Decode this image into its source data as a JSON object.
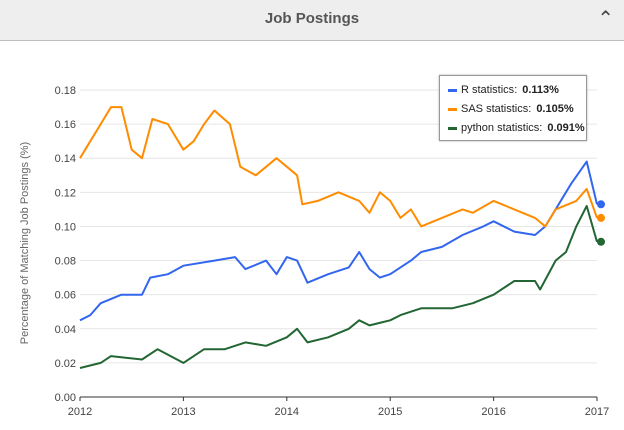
{
  "header": {
    "title": "Job Postings",
    "collapse_icon": "chevron-up-icon"
  },
  "chart_data": {
    "type": "line",
    "title": "Job Postings",
    "xlabel": "",
    "ylabel": "Percentage of Matching Job Postings (%)",
    "xlim": [
      2012,
      2017
    ],
    "ylim": [
      0,
      0.18
    ],
    "x_ticks": [
      "2012",
      "2013",
      "2014",
      "2015",
      "2016",
      "2017"
    ],
    "y_ticks": [
      "0.00",
      "0.02",
      "0.04",
      "0.06",
      "0.08",
      "0.10",
      "0.12",
      "0.14",
      "0.16",
      "0.18"
    ],
    "grid": true,
    "legend_position": "top-right",
    "series": [
      {
        "name": "R statistics",
        "color": "#3366ee",
        "latest": "0.113%",
        "points": [
          [
            2012,
            0.045
          ],
          [
            2012.1,
            0.048
          ],
          [
            2012.2,
            0.055
          ],
          [
            2012.4,
            0.06
          ],
          [
            2012.6,
            0.06
          ],
          [
            2012.68,
            0.07
          ],
          [
            2012.85,
            0.072
          ],
          [
            2013,
            0.077
          ],
          [
            2013.3,
            0.08
          ],
          [
            2013.5,
            0.082
          ],
          [
            2013.6,
            0.075
          ],
          [
            2013.8,
            0.08
          ],
          [
            2013.9,
            0.072
          ],
          [
            2014,
            0.082
          ],
          [
            2014.1,
            0.08
          ],
          [
            2014.2,
            0.067
          ],
          [
            2014.4,
            0.072
          ],
          [
            2014.6,
            0.076
          ],
          [
            2014.7,
            0.085
          ],
          [
            2014.8,
            0.075
          ],
          [
            2014.9,
            0.07
          ],
          [
            2015,
            0.072
          ],
          [
            2015.2,
            0.08
          ],
          [
            2015.3,
            0.085
          ],
          [
            2015.5,
            0.088
          ],
          [
            2015.7,
            0.095
          ],
          [
            2015.9,
            0.1
          ],
          [
            2016,
            0.103
          ],
          [
            2016.2,
            0.097
          ],
          [
            2016.4,
            0.095
          ],
          [
            2016.5,
            0.1
          ],
          [
            2016.6,
            0.11
          ],
          [
            2016.75,
            0.125
          ],
          [
            2016.9,
            0.138
          ],
          [
            2017,
            0.113
          ]
        ]
      },
      {
        "name": "SAS statistics",
        "color": "#ff8c00",
        "latest": "0.105%",
        "points": [
          [
            2012,
            0.14
          ],
          [
            2012.1,
            0.15
          ],
          [
            2012.2,
            0.16
          ],
          [
            2012.3,
            0.17
          ],
          [
            2012.4,
            0.17
          ],
          [
            2012.5,
            0.145
          ],
          [
            2012.6,
            0.14
          ],
          [
            2012.7,
            0.163
          ],
          [
            2012.85,
            0.16
          ],
          [
            2013,
            0.145
          ],
          [
            2013.1,
            0.15
          ],
          [
            2013.2,
            0.16
          ],
          [
            2013.3,
            0.168
          ],
          [
            2013.45,
            0.16
          ],
          [
            2013.55,
            0.135
          ],
          [
            2013.7,
            0.13
          ],
          [
            2013.9,
            0.14
          ],
          [
            2014,
            0.135
          ],
          [
            2014.1,
            0.13
          ],
          [
            2014.15,
            0.113
          ],
          [
            2014.3,
            0.115
          ],
          [
            2014.5,
            0.12
          ],
          [
            2014.7,
            0.115
          ],
          [
            2014.8,
            0.108
          ],
          [
            2014.9,
            0.12
          ],
          [
            2015,
            0.115
          ],
          [
            2015.1,
            0.105
          ],
          [
            2015.2,
            0.11
          ],
          [
            2015.3,
            0.1
          ],
          [
            2015.5,
            0.105
          ],
          [
            2015.7,
            0.11
          ],
          [
            2015.8,
            0.108
          ],
          [
            2016,
            0.115
          ],
          [
            2016.2,
            0.11
          ],
          [
            2016.4,
            0.105
          ],
          [
            2016.5,
            0.1
          ],
          [
            2016.6,
            0.11
          ],
          [
            2016.8,
            0.115
          ],
          [
            2016.9,
            0.122
          ],
          [
            2017,
            0.105
          ]
        ]
      },
      {
        "name": "python statistics",
        "color": "#226633",
        "latest": "0.091%",
        "points": [
          [
            2012,
            0.017
          ],
          [
            2012.2,
            0.02
          ],
          [
            2012.3,
            0.024
          ],
          [
            2012.6,
            0.022
          ],
          [
            2012.75,
            0.028
          ],
          [
            2013,
            0.02
          ],
          [
            2013.2,
            0.028
          ],
          [
            2013.4,
            0.028
          ],
          [
            2013.6,
            0.032
          ],
          [
            2013.8,
            0.03
          ],
          [
            2014,
            0.035
          ],
          [
            2014.1,
            0.04
          ],
          [
            2014.2,
            0.032
          ],
          [
            2014.4,
            0.035
          ],
          [
            2014.6,
            0.04
          ],
          [
            2014.7,
            0.045
          ],
          [
            2014.8,
            0.042
          ],
          [
            2015,
            0.045
          ],
          [
            2015.1,
            0.048
          ],
          [
            2015.3,
            0.052
          ],
          [
            2015.6,
            0.052
          ],
          [
            2015.8,
            0.055
          ],
          [
            2016,
            0.06
          ],
          [
            2016.2,
            0.068
          ],
          [
            2016.4,
            0.068
          ],
          [
            2016.45,
            0.063
          ],
          [
            2016.6,
            0.08
          ],
          [
            2016.7,
            0.085
          ],
          [
            2016.8,
            0.1
          ],
          [
            2016.9,
            0.112
          ],
          [
            2017,
            0.091
          ]
        ]
      }
    ]
  }
}
